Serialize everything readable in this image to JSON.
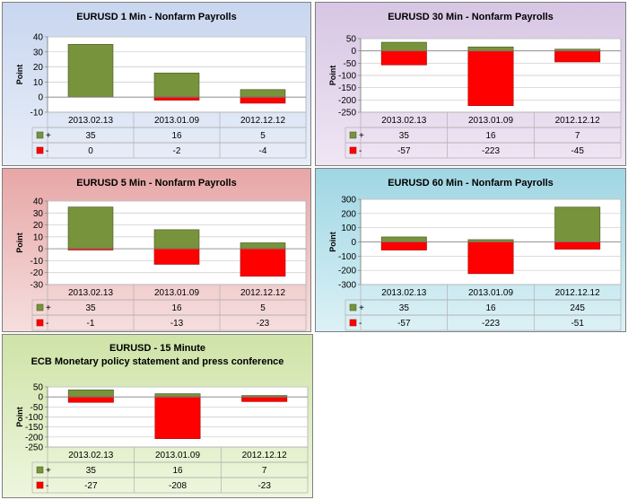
{
  "chart_data": [
    {
      "type": "bar",
      "title": "EURUSD 1 Min - Nonfarm Payrolls",
      "ylabel": "Point",
      "categories": [
        "2013.02.13",
        "2013.01.09",
        "2012.12.12"
      ],
      "series": [
        {
          "name": "+",
          "values": [
            35,
            16,
            5
          ],
          "color": "#77933c"
        },
        {
          "name": "-",
          "values": [
            0,
            -2,
            -4
          ],
          "color": "#ff0000"
        }
      ],
      "ylim": [
        -10,
        40
      ],
      "yticks": [
        -10,
        0,
        10,
        20,
        30,
        40
      ],
      "legend": "data-table"
    },
    {
      "type": "bar",
      "title": "EURUSD 30 Min - Nonfarm Payrolls",
      "ylabel": "Point",
      "categories": [
        "2013.02.13",
        "2013.01.09",
        "2012.12.12"
      ],
      "series": [
        {
          "name": "+",
          "values": [
            35,
            16,
            7
          ],
          "color": "#77933c"
        },
        {
          "name": "-",
          "values": [
            -57,
            -223,
            -45
          ],
          "color": "#ff0000"
        }
      ],
      "ylim": [
        -250,
        50
      ],
      "yticks": [
        -250,
        -200,
        -150,
        -100,
        -50,
        0,
        50
      ],
      "legend": "data-table"
    },
    {
      "type": "bar",
      "title": "EURUSD 5 Min - Nonfarm Payrolls",
      "ylabel": "Point",
      "categories": [
        "2013.02.13",
        "2013.01.09",
        "2012.12.12"
      ],
      "series": [
        {
          "name": "+",
          "values": [
            35,
            16,
            5
          ],
          "color": "#77933c"
        },
        {
          "name": "-",
          "values": [
            -1,
            -13,
            -23
          ],
          "color": "#ff0000"
        }
      ],
      "ylim": [
        -30,
        40
      ],
      "yticks": [
        -30,
        -20,
        -10,
        0,
        10,
        20,
        30,
        40
      ],
      "legend": "data-table"
    },
    {
      "type": "bar",
      "title": "EURUSD 60 Min - Nonfarm Payrolls",
      "ylabel": "Point",
      "categories": [
        "2013.02.13",
        "2013.01.09",
        "2012.12.12"
      ],
      "series": [
        {
          "name": "+",
          "values": [
            35,
            16,
            245
          ],
          "color": "#77933c"
        },
        {
          "name": "-",
          "values": [
            -57,
            -223,
            -51
          ],
          "color": "#ff0000"
        }
      ],
      "ylim": [
        -300,
        300
      ],
      "yticks": [
        -300,
        -200,
        -100,
        0,
        100,
        200,
        300
      ],
      "legend": "data-table"
    },
    {
      "type": "bar",
      "title": "EURUSD - 15 Minute",
      "subtitle": "ECB Monetary policy statement and press conference",
      "ylabel": "Point",
      "categories": [
        "2013.02.13",
        "2013.01.09",
        "2012.12.12"
      ],
      "series": [
        {
          "name": "+",
          "values": [
            35,
            16,
            7
          ],
          "color": "#77933c"
        },
        {
          "name": "-",
          "values": [
            -27,
            -208,
            -23
          ],
          "color": "#ff0000"
        }
      ],
      "ylim": [
        -250,
        50
      ],
      "yticks": [
        -250,
        -200,
        -150,
        -100,
        -50,
        0,
        50
      ],
      "legend": "data-table"
    }
  ]
}
